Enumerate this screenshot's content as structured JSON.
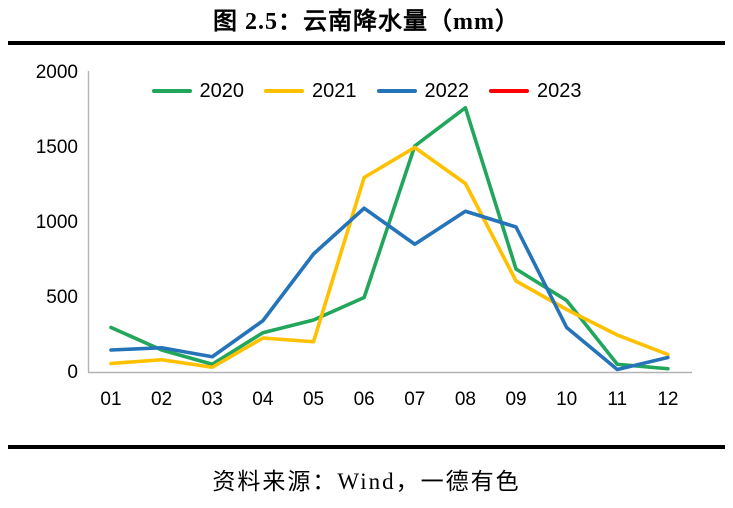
{
  "page": {
    "title": "图 2.5：云南降水量（mm）",
    "source": "资料来源：Wind，一德有色"
  },
  "chart_data": {
    "type": "line",
    "title": "图 2.5：云南降水量（mm）",
    "categories": [
      "01",
      "02",
      "03",
      "04",
      "05",
      "06",
      "07",
      "08",
      "09",
      "10",
      "11",
      "12"
    ],
    "series": [
      {
        "name": "2020",
        "color": "#21A65B",
        "values": [
          290,
          140,
          45,
          255,
          340,
          490,
          1500,
          1755,
          680,
          470,
          45,
          15
        ]
      },
      {
        "name": "2021",
        "color": "#FFC000",
        "values": [
          50,
          75,
          25,
          220,
          195,
          1290,
          1490,
          1250,
          600,
          410,
          240,
          110
        ]
      },
      {
        "name": "2022",
        "color": "#2574B9",
        "values": [
          140,
          155,
          95,
          335,
          780,
          1085,
          845,
          1065,
          960,
          290,
          10,
          90
        ]
      },
      {
        "name": "2023",
        "color": "#FF0000",
        "values": []
      }
    ],
    "ylim": [
      0,
      2000
    ],
    "yticks": [
      0,
      500,
      1000,
      1500,
      2000
    ],
    "grid": false,
    "legend_position": "top",
    "axis_color": "#B3B3B3",
    "text_color": "#000000"
  }
}
